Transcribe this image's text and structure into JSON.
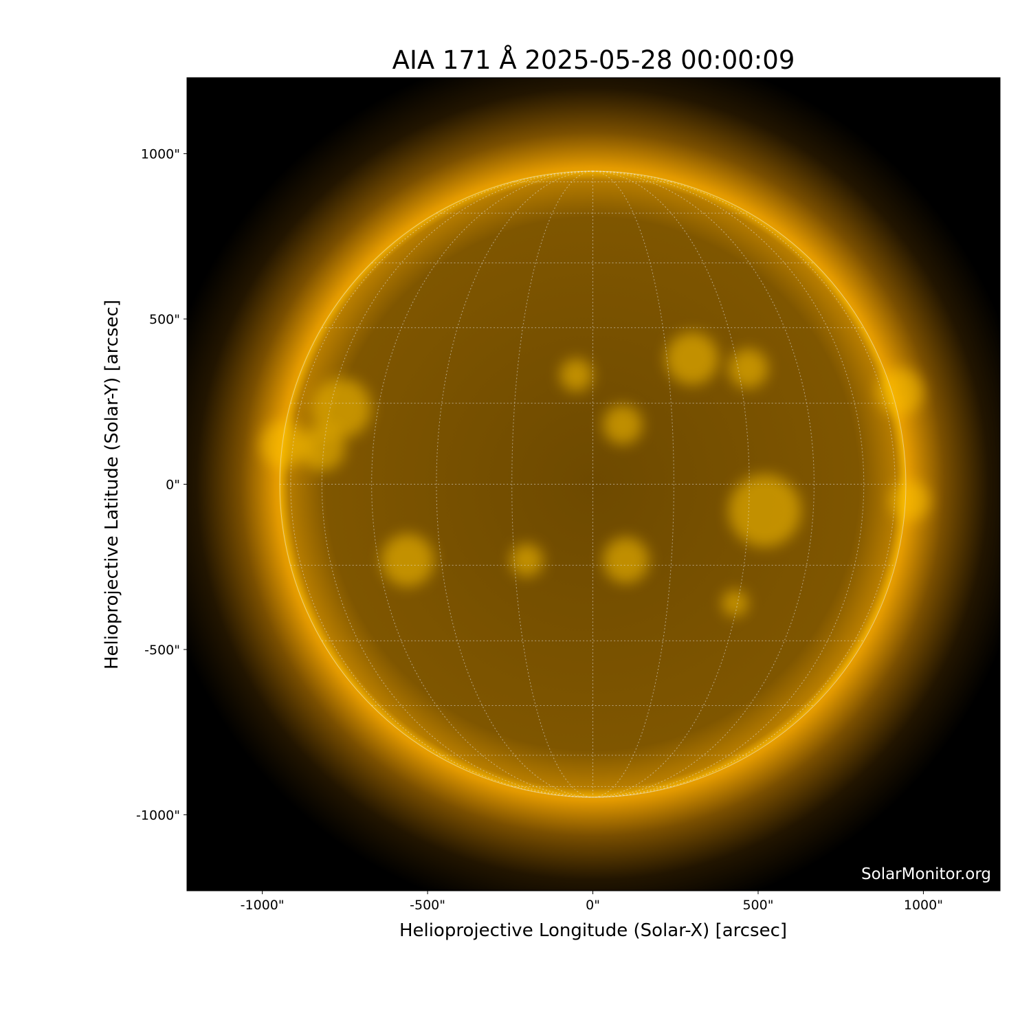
{
  "chart_data": {
    "type": "image",
    "title": "AIA 171 Å 2025-05-28 00:00:09",
    "xlabel": "Helioprojective Longitude (Solar-X) [arcsec]",
    "ylabel": "Helioprojective Latitude (Solar-Y) [arcsec]",
    "xlim": [
      -1228,
      1232
    ],
    "ylim": [
      -1230,
      1230
    ],
    "xticks": [
      -1000,
      -500,
      0,
      500,
      1000
    ],
    "xtick_labels": [
      "-1000\"",
      "-500\"",
      "0\"",
      "500\"",
      "1000\""
    ],
    "yticks": [
      1000,
      500,
      0,
      -500,
      -1000
    ],
    "ytick_labels": [
      "1000\"",
      "500\"",
      "0\"",
      "-500\"",
      "-1000\""
    ],
    "solar_radius_arcsec": 947,
    "grid": "heliographic, dotted, 15° spacing",
    "colormap": "sdoaia171",
    "colors": {
      "background": "#000000",
      "disk": "#7a5200",
      "corona": "#f0a800"
    }
  },
  "watermark": "SolarMonitor.org"
}
